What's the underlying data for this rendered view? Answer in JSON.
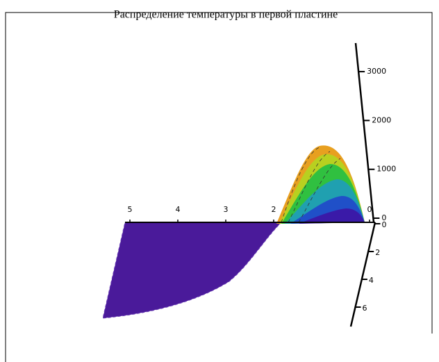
{
  "chart_data": {
    "type": "surface",
    "title": "Распределение температуры в первой пластине",
    "xticks": [
      0,
      2,
      3,
      4,
      5
    ],
    "yticks": [
      0,
      2,
      4,
      6
    ],
    "zticks": [
      0,
      1000,
      2000,
      3000
    ]
  }
}
